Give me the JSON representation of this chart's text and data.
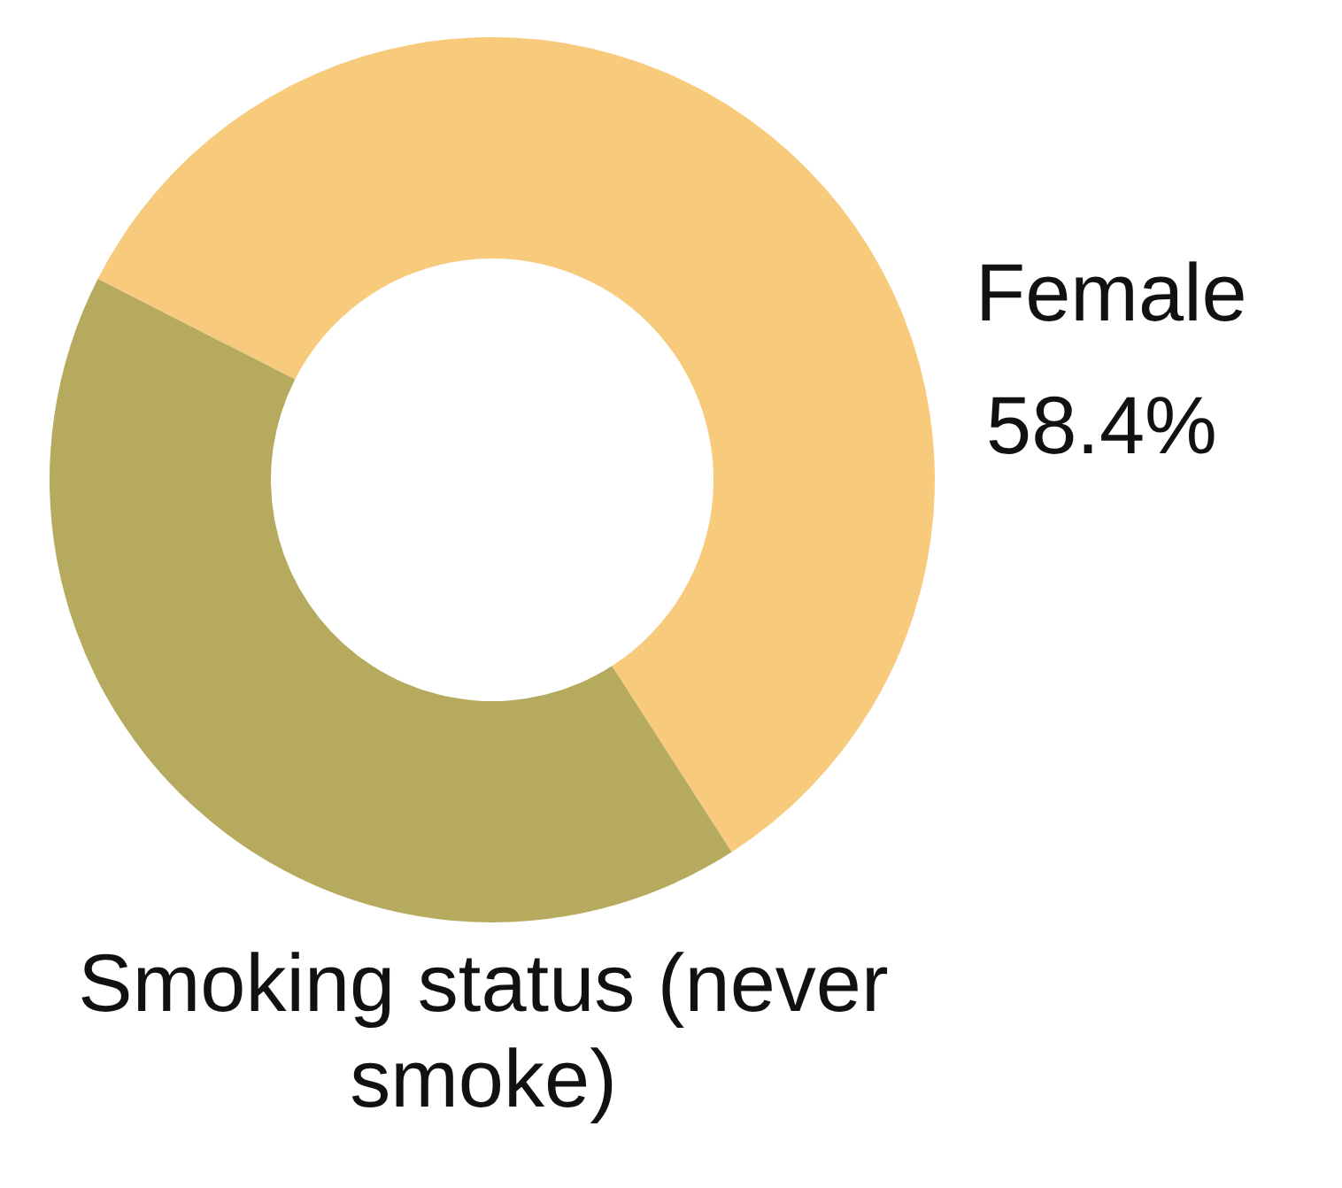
{
  "chart_data": {
    "type": "donut",
    "title": "Smoking status (never smoke)",
    "categories": [
      "Female",
      null
    ],
    "values": [
      58.4,
      41.6
    ],
    "colors": [
      "#f7ca7c",
      "#b5aa5e"
    ],
    "value_labels": [
      "58.4%",
      null
    ],
    "legend": false
  }
}
